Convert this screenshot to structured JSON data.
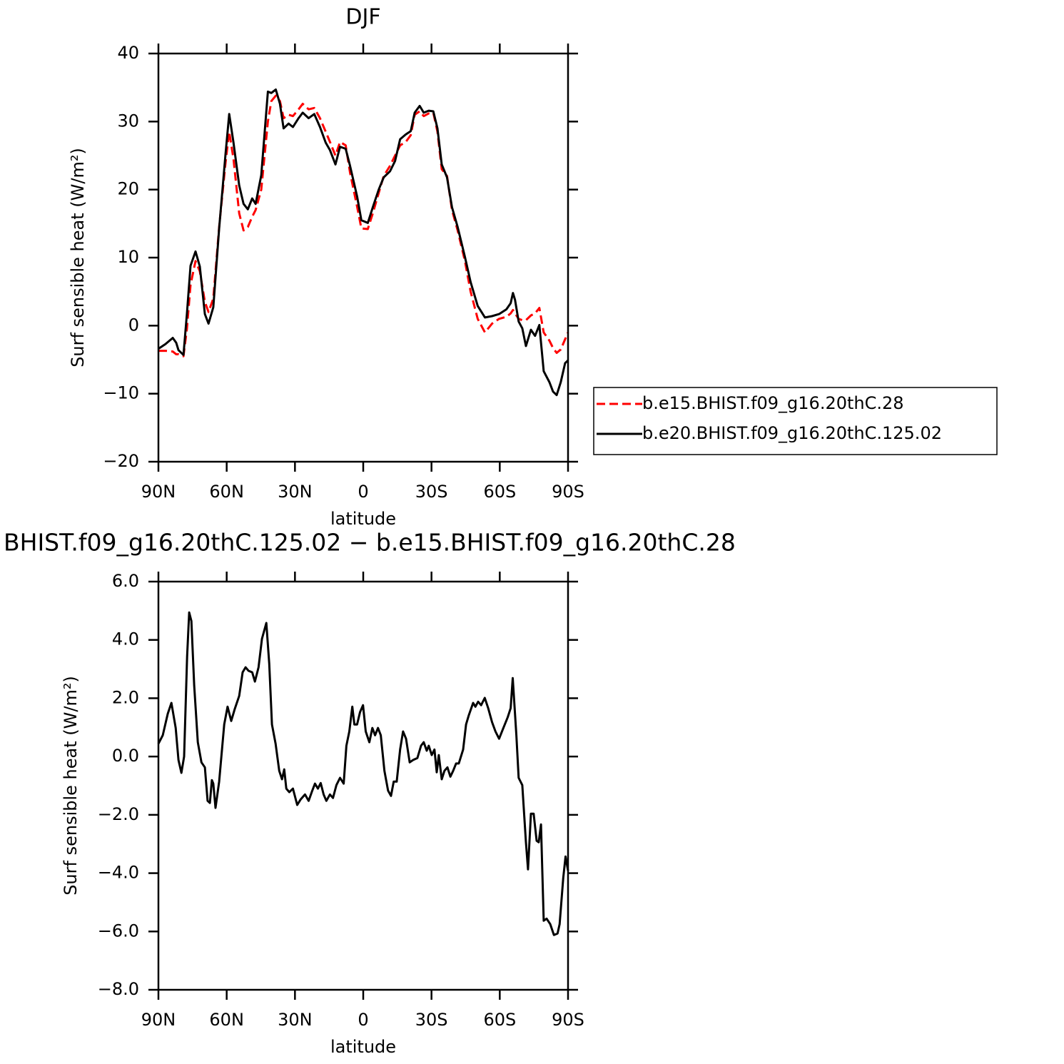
{
  "chart_data": [
    {
      "type": "line",
      "title": "DJF",
      "x_label": "latitude",
      "y_label": "Surf sensible heat (W/m²)",
      "x": [
        90,
        86.9,
        83.7,
        82.2,
        81.2,
        79.0,
        77.5,
        75.9,
        73.7,
        71.8,
        69.6,
        68.0,
        65.9,
        63.3,
        60.5,
        58.9,
        57.0,
        54.5,
        52.6,
        50.7,
        48.8,
        47.3,
        44.8,
        41.9,
        40.4,
        38.4,
        36.6,
        35.0,
        32.8,
        30.9,
        28.4,
        26.6,
        24.0,
        21.5,
        19.0,
        16.5,
        14.6,
        12.2,
        10.2,
        7.7,
        5.8,
        2.7,
        0.8,
        -2.0,
        -4.2,
        -6.8,
        -9.0,
        -11.8,
        -14.0,
        -16.2,
        -18.7,
        -20.9,
        -22.6,
        -24.8,
        -26.6,
        -28.8,
        -30.8,
        -32.6,
        -34.5,
        -36.8,
        -39.0,
        -41.5,
        -44.7,
        -47.2,
        -50.3,
        -53.5,
        -56.6,
        -59.7,
        -62.9,
        -64.8,
        -65.8,
        -66.7,
        -68.3,
        -69.9,
        -71.5,
        -73.7,
        -75.5,
        -77.4,
        -79.3,
        -81.8,
        -83.4,
        -85.0,
        -86.8,
        -88.7,
        -90
      ],
      "series": [
        {
          "name": "b.e15.BHIST.f09_g16.20thC.28",
          "color": "#ff0000",
          "linestyle": "dashed",
          "values": [
            -3.7,
            -3.7,
            -3.8,
            -4.2,
            -4.2,
            -4.5,
            -0.5,
            6.0,
            9.5,
            8.0,
            3.5,
            2.0,
            4.0,
            14.5,
            24.0,
            28.5,
            24.5,
            16.5,
            14.0,
            14.5,
            16.0,
            17.0,
            20.0,
            30.0,
            33.0,
            33.8,
            33.0,
            30.5,
            31.0,
            30.8,
            31.8,
            32.6,
            31.8,
            32.0,
            30.5,
            28.5,
            27.0,
            25.0,
            27.0,
            26.5,
            22.5,
            17.5,
            14.3,
            14.2,
            16.5,
            19.5,
            22.0,
            23.5,
            25.0,
            26.5,
            27.0,
            28.0,
            31.0,
            31.5,
            30.8,
            31.2,
            31.3,
            28.5,
            23.0,
            22.0,
            17.0,
            14.0,
            9.5,
            5.0,
            1.0,
            -1.0,
            0.3,
            1.0,
            1.3,
            1.8,
            2.3,
            1.8,
            1.0,
            0.8,
            0.8,
            1.5,
            1.8,
            2.6,
            -1.0,
            -2.2,
            -3.3,
            -4.0,
            -3.5,
            -2.0,
            -1.0
          ]
        },
        {
          "name": "b.e20.BHIST.f09_g16.20thC.125.02",
          "color": "#000000",
          "linestyle": "solid",
          "values": [
            -3.4,
            -2.7,
            -1.8,
            -2.5,
            -3.6,
            -4.3,
            1.7,
            8.8,
            10.9,
            8.7,
            1.7,
            0.3,
            2.7,
            14.3,
            25.3,
            31.1,
            26.9,
            20.6,
            17.9,
            17.1,
            18.7,
            17.9,
            22.1,
            34.4,
            34.2,
            34.7,
            32.6,
            29.0,
            29.7,
            29.2,
            30.5,
            31.3,
            30.5,
            31.1,
            29.2,
            26.9,
            25.8,
            23.7,
            26.3,
            26.0,
            23.5,
            19.0,
            15.5,
            15.1,
            17.4,
            20.0,
            21.8,
            22.7,
            24.2,
            27.4,
            28.1,
            28.6,
            31.3,
            32.3,
            31.3,
            31.6,
            31.5,
            29.0,
            23.7,
            21.8,
            17.4,
            14.5,
            10.1,
            6.4,
            2.9,
            1.2,
            1.4,
            1.7,
            2.4,
            3.3,
            4.8,
            3.8,
            0.6,
            -0.4,
            -3.0,
            -0.6,
            -1.5,
            0.1,
            -6.7,
            -8.3,
            -9.7,
            -10.2,
            -8.3,
            -5.5,
            -5.1
          ]
        }
      ],
      "xlim": [
        90,
        -90
      ],
      "xticks": [
        {
          "value": 90,
          "label": "90N"
        },
        {
          "value": 60,
          "label": "60N"
        },
        {
          "value": 30,
          "label": "30N"
        },
        0,
        {
          "value": -30,
          "label": "30S"
        },
        {
          "value": -60,
          "label": "60S"
        },
        {
          "value": -90,
          "label": "90S"
        }
      ],
      "ylim": [
        -20,
        40
      ],
      "yticks": [
        {
          "value": -20,
          "label": "−20"
        },
        {
          "value": -10,
          "label": "−10"
        },
        0,
        10,
        20,
        30,
        40
      ],
      "legend": "right"
    },
    {
      "type": "line",
      "title": "BHIST.f09_g16.20thC.125.02 − b.e15.BHIST.f09_g16.20thC.28",
      "x_label": "latitude",
      "y_label": "Surf sensible heat (W/m²)",
      "x": [
        90,
        88.1,
        85.9,
        84.3,
        82.4,
        81.2,
        79.9,
        78.7,
        77.4,
        76.5,
        75.5,
        74.3,
        72.7,
        71.1,
        69.6,
        68.4,
        67.4,
        66.5,
        65.9,
        64.9,
        63.3,
        61.1,
        59.6,
        58.0,
        56.4,
        54.5,
        53.0,
        51.7,
        50.4,
        48.8,
        47.6,
        46.0,
        44.5,
        42.6,
        41.3,
        40.1,
        38.5,
        36.9,
        35.7,
        34.7,
        33.8,
        32.5,
        30.9,
        29.0,
        27.5,
        25.6,
        24.0,
        22.4,
        21.2,
        19.9,
        18.7,
        17.4,
        16.2,
        14.6,
        13.3,
        11.8,
        10.2,
        8.6,
        7.4,
        6.1,
        4.8,
        3.9,
        2.7,
        1.4,
        0.1,
        -1.1,
        -2.7,
        -4.0,
        -5.2,
        -6.5,
        -7.7,
        -9.3,
        -10.9,
        -12.2,
        -13.4,
        -14.7,
        -16.2,
        -17.5,
        -18.8,
        -20.4,
        -21.9,
        -23.8,
        -25.4,
        -26.6,
        -27.9,
        -28.8,
        -30.1,
        -31.3,
        -32.3,
        -33.2,
        -34.5,
        -35.7,
        -37.0,
        -38.3,
        -39.5,
        -40.8,
        -42.0,
        -43.9,
        -45.2,
        -46.4,
        -48.3,
        -49.3,
        -50.5,
        -51.8,
        -53.4,
        -54.9,
        -56.6,
        -58.1,
        -59.7,
        -61.6,
        -63.5,
        -64.8,
        -65.7,
        -67.3,
        -68.3,
        -69.9,
        -71.5,
        -72.4,
        -73.7,
        -74.9,
        -76.2,
        -77.1,
        -78.1,
        -79.3,
        -80.6,
        -82.2,
        -83.8,
        -85.4,
        -86.3,
        -87.9,
        -88.9,
        -90
      ],
      "series": [
        {
          "color": "#000000",
          "linestyle": "solid",
          "values": [
            0.44,
            0.73,
            1.47,
            1.84,
            0.98,
            -0.12,
            -0.56,
            0,
            3.43,
            4.94,
            4.65,
            2.45,
            0.49,
            -0.2,
            -0.37,
            -1.52,
            -1.59,
            -0.81,
            -0.93,
            -1.76,
            -0.86,
            1.1,
            1.71,
            1.22,
            1.64,
            2.08,
            2.89,
            3.06,
            2.94,
            2.89,
            2.57,
            3.06,
            4.04,
            4.58,
            3.18,
            1.1,
            0.44,
            -0.49,
            -0.78,
            -0.44,
            -1.1,
            -1.22,
            -1.1,
            -1.66,
            -1.47,
            -1.3,
            -1.52,
            -1.17,
            -0.93,
            -1.1,
            -0.91,
            -1.3,
            -1.52,
            -1.3,
            -1.42,
            -0.98,
            -0.73,
            -0.93,
            0.37,
            0.86,
            1.71,
            1.1,
            1.1,
            1.52,
            1.76,
            0.86,
            0.49,
            0.98,
            0.73,
            0.98,
            0.73,
            -0.49,
            -1.17,
            -1.35,
            -0.86,
            -0.86,
            0.24,
            0.86,
            0.61,
            -0.2,
            -0.12,
            -0.05,
            0.37,
            0.49,
            0.2,
            0.37,
            0.05,
            0.24,
            -0.54,
            0.05,
            -0.78,
            -0.49,
            -0.37,
            -0.69,
            -0.49,
            -0.24,
            -0.24,
            0.24,
            1.1,
            1.42,
            1.84,
            1.71,
            1.88,
            1.76,
            2.01,
            1.66,
            1.18,
            0.86,
            0.61,
            0.98,
            1.35,
            1.66,
            2.69,
            0.73,
            -0.73,
            -0.98,
            -2.94,
            -3.87,
            -1.96,
            -1.96,
            -2.89,
            -2.94,
            -2.33,
            -5.63,
            -5.56,
            -5.75,
            -6.12,
            -6.07,
            -5.75,
            -4.16,
            -3.43,
            -3.92
          ]
        }
      ],
      "xlim": [
        90,
        -90
      ],
      "xticks": [
        {
          "value": 90,
          "label": "90N"
        },
        {
          "value": 60,
          "label": "60N"
        },
        {
          "value": 30,
          "label": "30N"
        },
        0,
        {
          "value": -30,
          "label": "30S"
        },
        {
          "value": -60,
          "label": "60S"
        },
        {
          "value": -90,
          "label": "90S"
        }
      ],
      "ylim": [
        -8,
        6
      ],
      "yticks": [
        {
          "value": -8,
          "label": "−8.0"
        },
        {
          "value": -6,
          "label": "−6.0"
        },
        {
          "value": -4,
          "label": "−4.0"
        },
        {
          "value": -2,
          "label": "−2.0"
        },
        {
          "value": 0,
          "label": "0.0"
        },
        {
          "value": 2,
          "label": "2.0"
        },
        {
          "value": 4,
          "label": "4.0"
        },
        {
          "value": 6,
          "label": "6.0"
        }
      ]
    }
  ]
}
